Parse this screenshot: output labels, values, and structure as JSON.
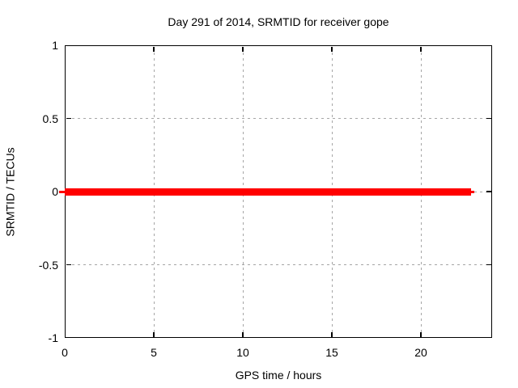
{
  "chart_data": {
    "type": "line",
    "title": "Day 291 of 2014, SRMTID for receiver gope",
    "xlabel": "GPS time / hours",
    "ylabel": "SRMTID / TECUs",
    "xlim": [
      0,
      24
    ],
    "ylim": [
      -1,
      1
    ],
    "x_ticks": [
      0,
      5,
      10,
      15,
      20
    ],
    "x_tick_labels": [
      "0",
      "5",
      "10",
      "15",
      "20"
    ],
    "y_ticks": [
      1,
      0.5,
      0,
      -0.5,
      -1
    ],
    "y_tick_labels": [
      "1",
      "0.5",
      "0",
      "-0.5",
      "-1"
    ],
    "grid": true,
    "legend": "none",
    "series": [
      {
        "name": "SRMTID",
        "color": "#ff0000",
        "x": [
          0,
          22.8
        ],
        "y": [
          0,
          0
        ]
      }
    ]
  },
  "colors": {
    "background": "#ffffff",
    "axis": "#000000",
    "grid": "#a6a6a6",
    "line": "#ff0000",
    "text": "#000000"
  }
}
